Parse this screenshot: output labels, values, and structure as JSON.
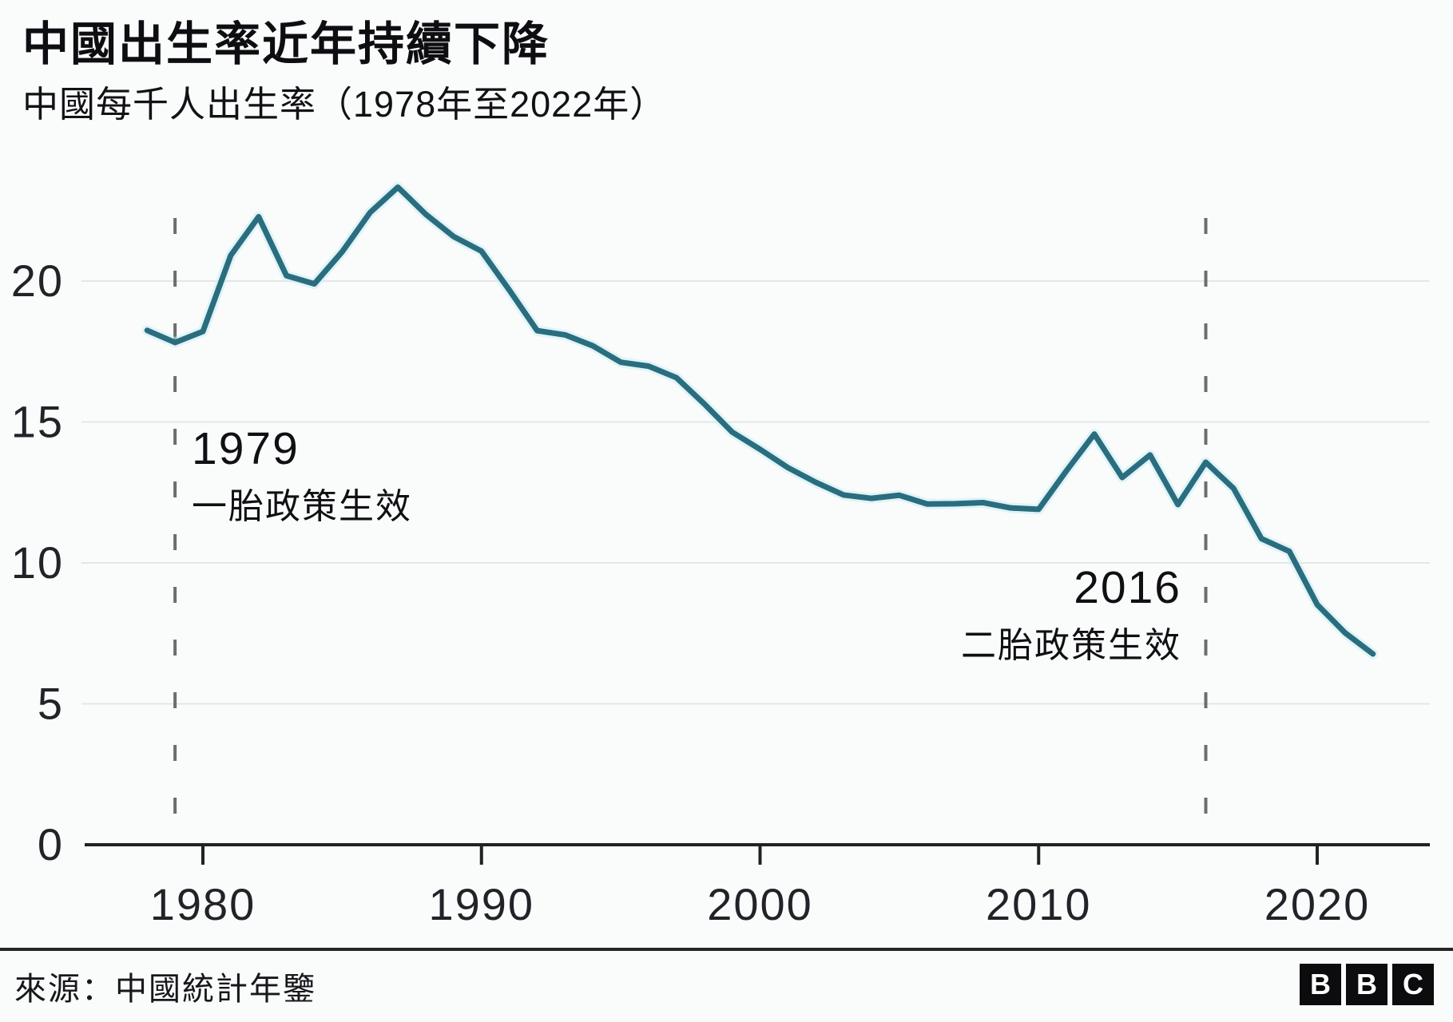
{
  "header": {
    "title": "中國出生率近年持續下降",
    "subtitle": "中國每千人出生率（1978年至2022年）"
  },
  "chart_data": {
    "type": "line",
    "title": "中國出生率近年持續下降",
    "subtitle": "中國每千人出生率（1978年至2022年）",
    "xlabel": "",
    "ylabel": "",
    "x": [
      1978,
      1979,
      1980,
      1981,
      1982,
      1983,
      1984,
      1985,
      1986,
      1987,
      1988,
      1989,
      1990,
      1991,
      1992,
      1993,
      1994,
      1995,
      1996,
      1997,
      1998,
      1999,
      2000,
      2001,
      2002,
      2003,
      2004,
      2005,
      2006,
      2007,
      2008,
      2009,
      2010,
      2011,
      2012,
      2013,
      2014,
      2015,
      2016,
      2017,
      2018,
      2019,
      2020,
      2021,
      2022
    ],
    "values": [
      18.25,
      17.82,
      18.21,
      20.91,
      22.28,
      20.19,
      19.9,
      21.04,
      22.43,
      23.33,
      22.37,
      21.58,
      21.06,
      19.68,
      18.24,
      18.09,
      17.7,
      17.12,
      16.98,
      16.57,
      15.64,
      14.64,
      14.03,
      13.38,
      12.86,
      12.41,
      12.29,
      12.4,
      12.09,
      12.1,
      12.14,
      11.95,
      11.9,
      13.27,
      14.57,
      13.03,
      13.83,
      12.07,
      13.57,
      12.64,
      10.86,
      10.41,
      8.52,
      7.52,
      6.77
    ],
    "ylim": [
      0,
      24
    ],
    "y_ticks": [
      0,
      5,
      10,
      15,
      20
    ],
    "x_ticks": [
      1980,
      1990,
      2000,
      2010,
      2020
    ],
    "grid": "horizontal",
    "legend": "none",
    "line_color": "#2a6d7e",
    "annotations": [
      {
        "year": 1979,
        "label": "1979",
        "text": "一胎政策生效"
      },
      {
        "year": 2016,
        "label": "2016",
        "text": "二胎政策生效"
      }
    ]
  },
  "footer": {
    "source": "來源：中國統計年鑒",
    "logo": [
      "B",
      "B",
      "C"
    ]
  }
}
